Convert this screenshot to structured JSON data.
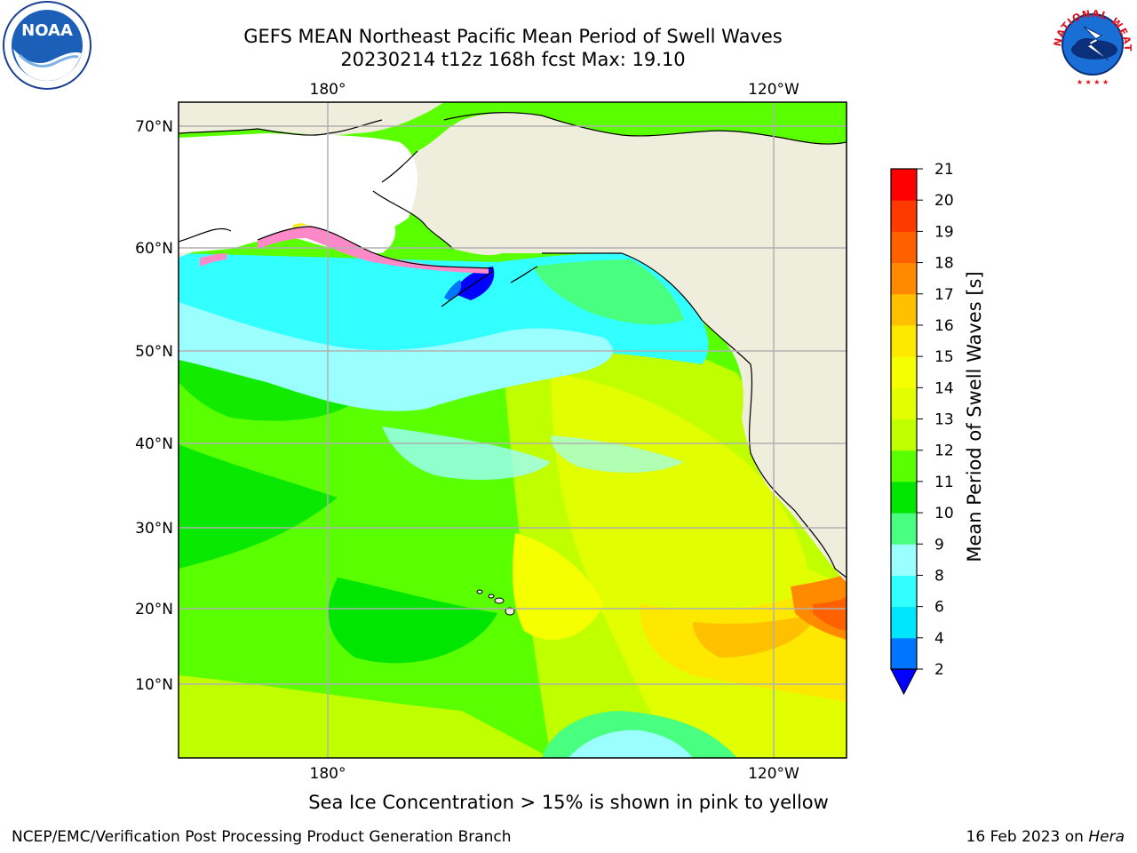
{
  "header": {
    "title_line1": "GEFS MEAN Northeast Pacific Mean Period of Swell Waves",
    "title_line2": "20230214 t12z 168h fcst   Max: 19.10"
  },
  "logos": {
    "left": {
      "icon": "noaa-logo",
      "text": "NOAA"
    },
    "right": {
      "icon": "national-weather-service-logo",
      "text": "NATIONAL WEATHER SERVICE"
    }
  },
  "map": {
    "lon_labels_top": [
      "180°",
      "120°W"
    ],
    "lon_labels_bottom": [
      "180°",
      "120°W"
    ],
    "lat_labels": [
      "70°N",
      "60°N",
      "50°N",
      "40°N",
      "30°N",
      "20°N",
      "10°N"
    ],
    "colors": {
      "land": "#efeddc",
      "ice_free_land_white": "#ffffff",
      "gridline": "#b0b0b0",
      "coast": "#000000"
    }
  },
  "colorbar": {
    "label": "Mean Period of Swell Waves [s]",
    "ticks": [
      "21",
      "20",
      "19",
      "18",
      "17",
      "16",
      "15",
      "14",
      "13",
      "12",
      "11",
      "10",
      "9",
      "8",
      "6",
      "4",
      "2"
    ],
    "levels": [
      {
        "value": "2-4",
        "color": "#0075ff"
      },
      {
        "value": "4-6",
        "color": "#00e6ff"
      },
      {
        "value": "6-8",
        "color": "#32ffff"
      },
      {
        "value": "8-9",
        "color": "#9cffff"
      },
      {
        "value": "9-10",
        "color": "#48ff80"
      },
      {
        "value": "10-11",
        "color": "#00e600"
      },
      {
        "value": "11-12",
        "color": "#5aff00"
      },
      {
        "value": "12-13",
        "color": "#c0ff00"
      },
      {
        "value": "13-14",
        "color": "#e1ff00"
      },
      {
        "value": "14-15",
        "color": "#f5ff00"
      },
      {
        "value": "15-16",
        "color": "#ffe800"
      },
      {
        "value": "16-17",
        "color": "#ffc000"
      },
      {
        "value": "17-18",
        "color": "#ff8a00"
      },
      {
        "value": "18-19",
        "color": "#ff6000"
      },
      {
        "value": "19-20",
        "color": "#ff3a00"
      },
      {
        "value": "20-21",
        "color": "#ff0000"
      }
    ],
    "under_color": "#0000ff"
  },
  "footer": {
    "ice_note": "Sea Ice Concentration > 15% is shown in pink to yellow",
    "credit": "NCEP/EMC/Verification Post Processing Product Generation Branch",
    "date": "16 Feb 2023 on ",
    "host": "Hera"
  }
}
